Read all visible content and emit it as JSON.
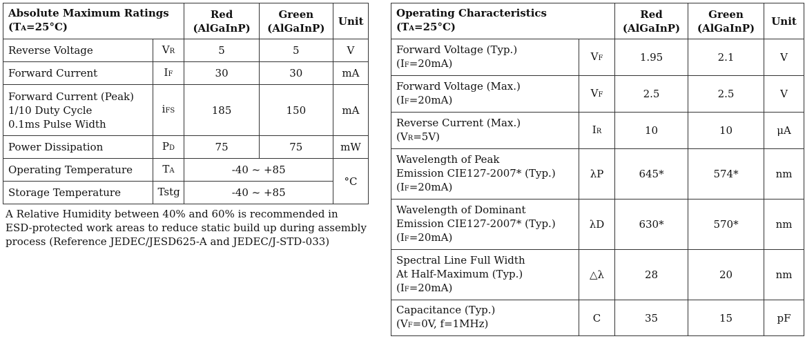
{
  "amr": {
    "title": "Absolute Maximum Ratings",
    "cond_prefix": "(T",
    "cond_sub": "A",
    "cond_suffix": "=25°C)",
    "col_red_1": "Red",
    "col_red_2": "(AlGaInP)",
    "col_green_1": "Green",
    "col_green_2": "(AlGaInP)",
    "col_unit": "Unit",
    "rows": [
      {
        "param": [
          "Reverse Voltage"
        ],
        "sym": "V",
        "sym_sub": "R",
        "red": "5",
        "green": "5",
        "unit": "V"
      },
      {
        "param": [
          "Forward Current"
        ],
        "sym": "I",
        "sym_sub": "F",
        "red": "30",
        "green": "30",
        "unit": "mA"
      },
      {
        "param": [
          "Forward Current (Peak)",
          "1/10 Duty Cycle",
          "0.1ms Pulse Width"
        ],
        "sym": "i",
        "sym_sub": "FS",
        "red": "185",
        "green": "150",
        "unit": "mA"
      },
      {
        "param": [
          "Power Dissipation"
        ],
        "sym": "P",
        "sym_sub": "D",
        "red": "75",
        "green": "75",
        "unit": "mW"
      },
      {
        "param": [
          "Operating Temperature"
        ],
        "sym": "T",
        "sym_sub": "A",
        "range": "-40 ~ +85"
      },
      {
        "param": [
          "Storage Temperature"
        ],
        "sym": "Tstg",
        "sym_sub": "",
        "range": "-40 ~ +85"
      }
    ],
    "temp_unit": "°C"
  },
  "note": {
    "lines": [
      "A Relative Humidity between 40% and 60% is recommended in",
      "ESD-protected work areas to reduce static build up during assembly",
      "process (Reference JEDEC/JESD625-A and JEDEC/J-STD-033)"
    ]
  },
  "oc": {
    "title": "Operating Characteristics",
    "cond_prefix": "(T",
    "cond_sub": "A",
    "cond_suffix": "=25°C)",
    "col_red_1": "Red",
    "col_red_2": "(AlGaInP)",
    "col_green_1": "Green",
    "col_green_2": "(AlGaInP)",
    "col_unit": "Unit",
    "rows": [
      {
        "param": [
          "Forward Voltage (Typ.)"
        ],
        "cond": [
          "(I",
          "F",
          "=20mA)"
        ],
        "sym": "V",
        "sym_sub": "F",
        "red": "1.95",
        "green": "2.1",
        "unit": "V"
      },
      {
        "param": [
          "Forward Voltage (Max.)"
        ],
        "cond": [
          "(I",
          "F",
          "=20mA)"
        ],
        "sym": "V",
        "sym_sub": "F",
        "red": "2.5",
        "green": "2.5",
        "unit": "V"
      },
      {
        "param": [
          "Reverse Current (Max.)"
        ],
        "cond": [
          "(V",
          "R",
          "=5V)"
        ],
        "sym": "I",
        "sym_sub": "R",
        "red": "10",
        "green": "10",
        "unit": "μA"
      },
      {
        "param": [
          "Wavelength of Peak",
          "Emission CIE127-2007*  (Typ.)"
        ],
        "cond": [
          "(I",
          "F",
          "=20mA)"
        ],
        "sym": "λP",
        "sym_sub": "",
        "red": "645*",
        "green": "574*",
        "unit": "nm"
      },
      {
        "param": [
          "Wavelength of Dominant",
          "Emission CIE127-2007*  (Typ.)"
        ],
        "cond": [
          "(I",
          "F",
          "=20mA)"
        ],
        "sym": "λD",
        "sym_sub": "",
        "red": "630*",
        "green": "570*",
        "unit": "nm"
      },
      {
        "param": [
          "Spectral Line Full Width",
          "At Half-Maximum (Typ.)"
        ],
        "cond": [
          "(I",
          "F",
          "=20mA)"
        ],
        "sym": "△λ",
        "sym_sub": "",
        "red": "28",
        "green": "20",
        "unit": "nm"
      },
      {
        "param": [
          "Capacitance (Typ.)"
        ],
        "cond": [
          "(V",
          "F",
          "=0V, f=1MHz)"
        ],
        "sym": "C",
        "sym_sub": "",
        "red": "35",
        "green": "15",
        "unit": "pF"
      }
    ]
  }
}
